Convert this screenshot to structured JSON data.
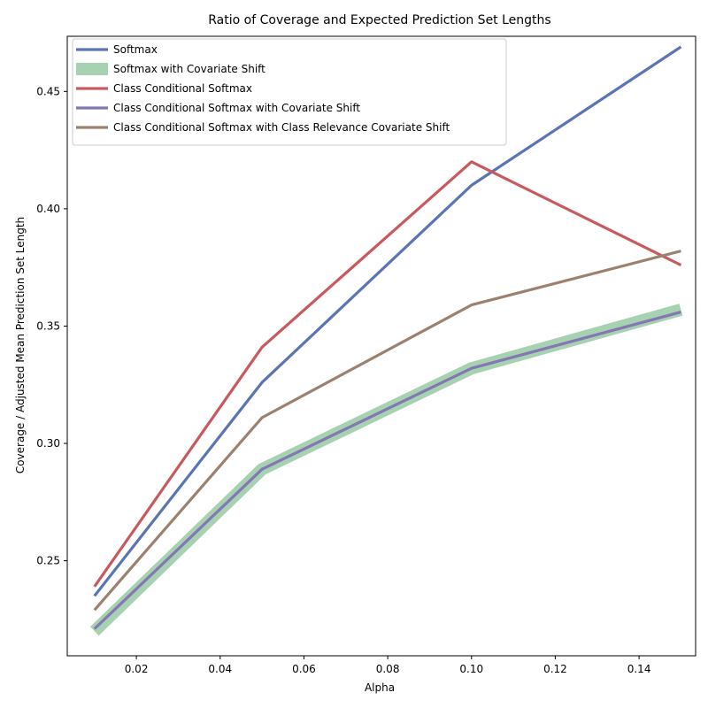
{
  "chart_data": {
    "type": "line",
    "title": "Ratio of Coverage and Expected Prediction Set Lengths",
    "xlabel": "Alpha",
    "ylabel": "Coverage / Adjusted Mean Prediction Set Length",
    "xlim": [
      0.0035,
      0.1535
    ],
    "ylim": [
      0.2095,
      0.4735
    ],
    "xticks": [
      0.02,
      0.04,
      0.06,
      0.08,
      0.1,
      0.12,
      0.14
    ],
    "xtick_labels": [
      "0.02",
      "0.04",
      "0.06",
      "0.08",
      "0.10",
      "0.12",
      "0.14"
    ],
    "yticks": [
      0.25,
      0.3,
      0.35,
      0.4,
      0.45
    ],
    "ytick_labels": [
      "0.25",
      "0.30",
      "0.35",
      "0.40",
      "0.45"
    ],
    "grid": false,
    "legend_position": "top-left",
    "x": [
      0.01,
      0.05,
      0.1,
      0.15
    ],
    "series": [
      {
        "name": "Softmax",
        "values": [
          0.235,
          0.326,
          0.41,
          0.469
        ],
        "color": "#5975b4",
        "wide": false
      },
      {
        "name": "Softmax with Covariate Shift",
        "values": [
          0.22,
          0.289,
          0.332,
          0.357
        ],
        "color": "#a6d2b1",
        "wide": true
      },
      {
        "name": "Class Conditional Softmax",
        "values": [
          0.239,
          0.341,
          0.42,
          0.376
        ],
        "color": "#c85a5e",
        "wide": false
      },
      {
        "name": "Class Conditional Softmax with Covariate Shift",
        "values": [
          0.221,
          0.289,
          0.332,
          0.356
        ],
        "color": "#8477b4",
        "wide": false
      },
      {
        "name": "Class Conditional Softmax with Class Relevance Covariate Shift",
        "values": [
          0.229,
          0.311,
          0.359,
          0.382
        ],
        "color": "#9c816e",
        "wide": false
      }
    ]
  }
}
